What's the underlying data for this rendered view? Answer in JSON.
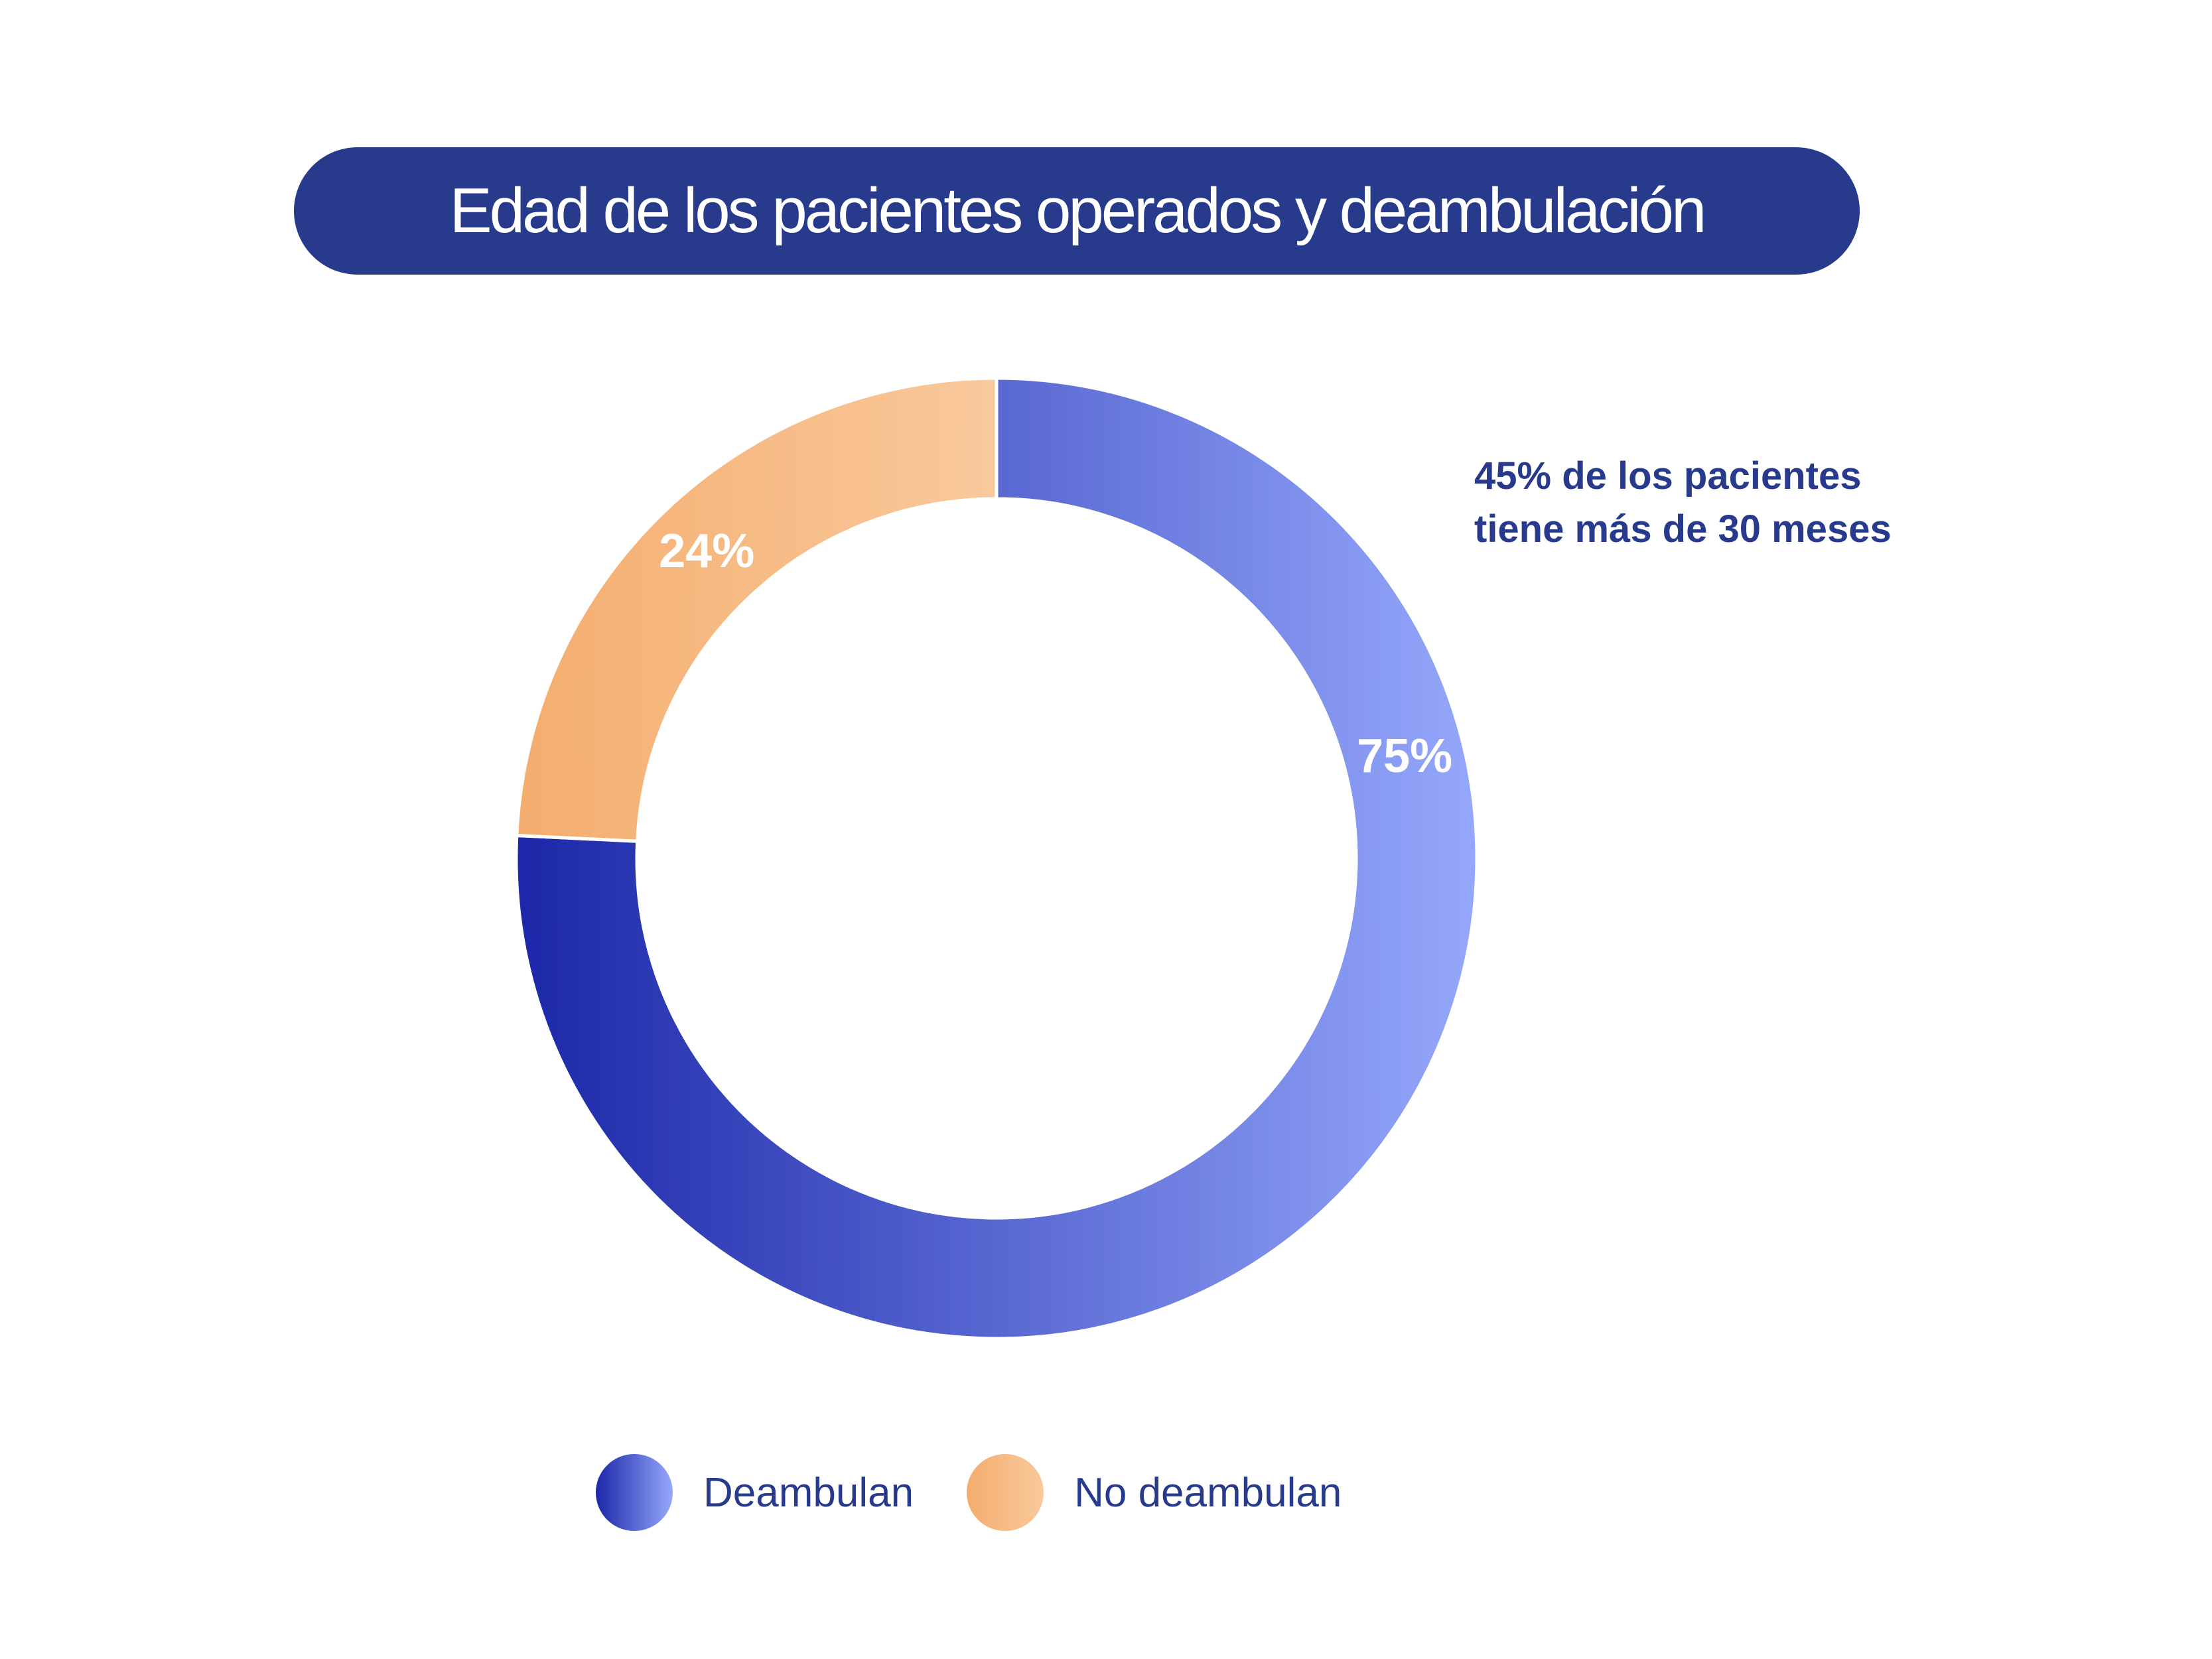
{
  "colors": {
    "title_bg": "#283a8c",
    "text_dark": "#283a8c",
    "deambulan_start": "#1b27a8",
    "deambulan_end": "#95a8fb",
    "no_deambulan_start": "#f4ad6e",
    "no_deambulan_end": "#f9c99c"
  },
  "chart_data": {
    "type": "pie",
    "title": "Edad de los pacientes operados y deambulación",
    "donut": true,
    "categories": [
      "Deambulan",
      "No deambulan"
    ],
    "values": [
      75,
      24
    ],
    "value_labels": [
      "75%",
      "24%"
    ],
    "legend": {
      "placement": "bottom",
      "entries": [
        "Deambulan",
        "No deambulan"
      ]
    },
    "annotation": [
      "45% de los pacientes",
      "tiene más de 30 meses"
    ]
  }
}
